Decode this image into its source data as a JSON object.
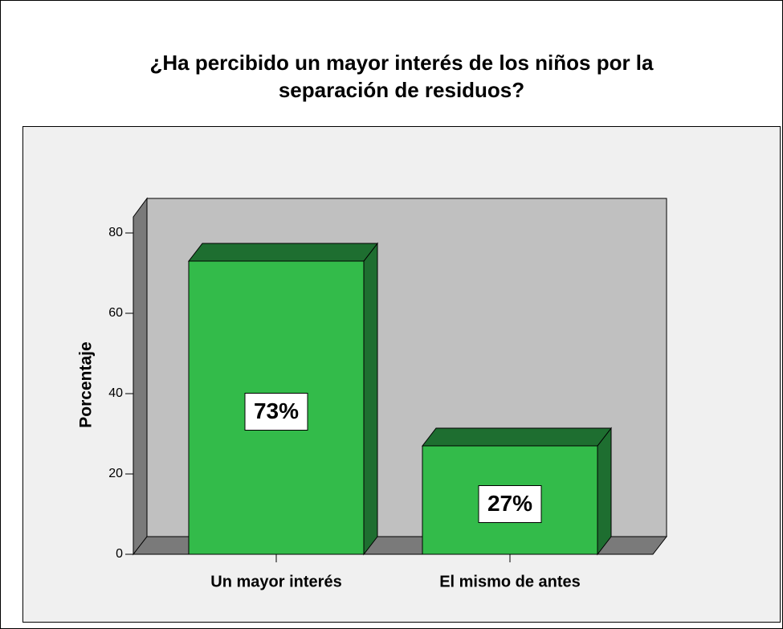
{
  "chart_data": {
    "type": "bar3d",
    "title": [
      "¿Ha percibido un mayor interés de los niños por la",
      "separación de residuos?"
    ],
    "y_label": "Porcentaje",
    "categories": [
      "Un mayor interés",
      "El mismo de antes"
    ],
    "values": [
      73,
      27
    ],
    "value_labels": [
      "73%",
      "27%"
    ],
    "color": "#33bb4a",
    "ylim": [
      0,
      84
    ],
    "yticks": [
      0,
      20,
      40,
      60,
      80
    ]
  }
}
